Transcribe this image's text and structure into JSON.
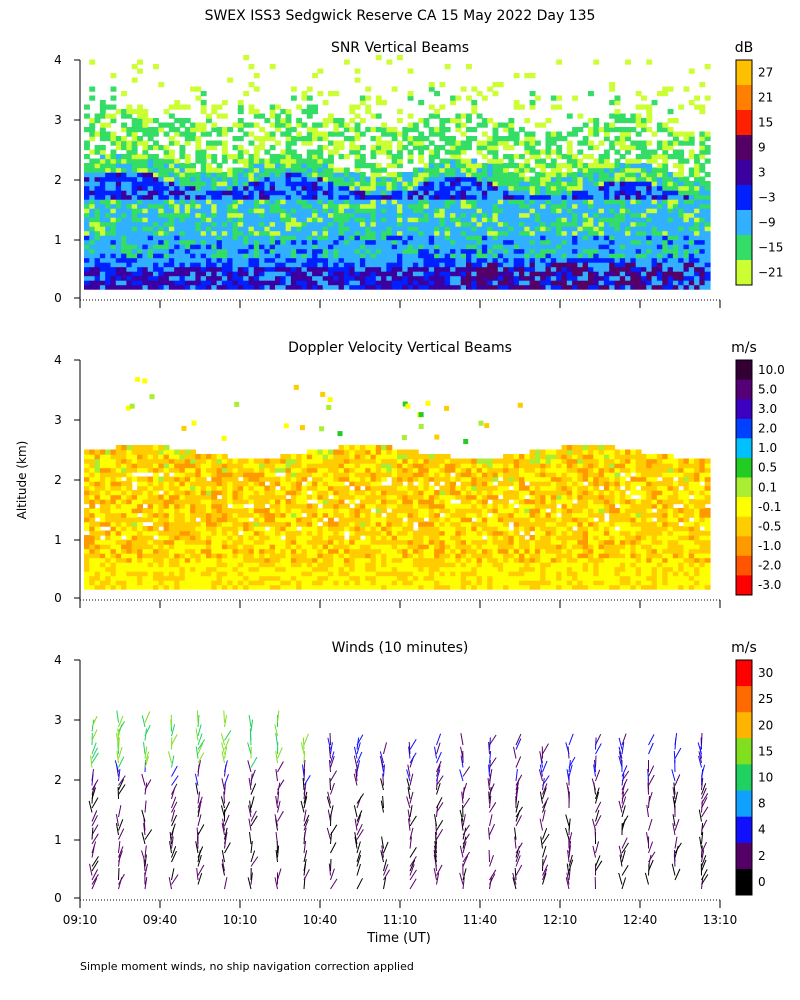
{
  "figure": {
    "title": "SWEX ISS3 Sedgwick Reserve CA  15 May 2022 Day 135",
    "ylabel": "Altitude (km)",
    "xlabel": "Time (UT)",
    "footnote": "Simple moment winds, no ship navigation correction applied"
  },
  "chart_data": [
    {
      "type": "heatmap",
      "title": "SNR Vertical Beams",
      "xlabel": "Time (UT)",
      "ylabel": "Altitude (km)",
      "x_ticks": [
        "09:10",
        "09:40",
        "10:10",
        "10:40",
        "11:10",
        "11:40",
        "12:10",
        "12:40",
        "13:10"
      ],
      "x_range_hours": [
        9.1667,
        13.1667
      ],
      "y_ticks": [
        0,
        1,
        2,
        3,
        4
      ],
      "ylim": [
        0,
        4
      ],
      "colorbar": {
        "unit": "dB",
        "tick_labels": [
          "27",
          "21",
          "15",
          "9",
          "3",
          "−3",
          "−9",
          "−15",
          "−21"
        ],
        "colors": [
          "#ffc000",
          "#ff8000",
          "#ff2000",
          "#550066",
          "#3c00a0",
          "#0020ff",
          "#30b0ff",
          "#33dd66",
          "#ccff33"
        ],
        "range": [
          -21,
          27
        ]
      },
      "cloud_top_km": 2.2,
      "notes": "High SNR (purple/dark blue) below 0.6 km and around 2 km; cyan/green layer 0.6-2.3 km; patchy green/white echoes 2.3-4 km"
    },
    {
      "type": "heatmap",
      "title": "Doppler Velocity Vertical Beams",
      "xlabel": "Time (UT)",
      "ylabel": "Altitude (km)",
      "x_ticks": [
        "09:10",
        "09:40",
        "10:10",
        "10:40",
        "11:10",
        "11:40",
        "12:10",
        "12:40",
        "13:10"
      ],
      "y_ticks": [
        0,
        1,
        2,
        3,
        4
      ],
      "ylim": [
        0,
        4
      ],
      "colorbar": {
        "unit": "m/s",
        "tick_labels": [
          "10.0",
          "5.0",
          "3.0",
          "2.0",
          "1.0",
          "0.5",
          "0.1",
          "-0.1",
          "-0.5",
          "-1.0",
          "-2.0",
          "-3.0"
        ],
        "colors": [
          "#330033",
          "#550077",
          "#3c00c0",
          "#0040ff",
          "#00c0ff",
          "#22cc22",
          "#aaee33",
          "#ffff00",
          "#ffcc00",
          "#ff9900",
          "#ff5500",
          "#ff0000"
        ],
        "range": [
          -3.0,
          10.0
        ]
      },
      "notes": "Mostly small downward/near-zero velocities (yellow/orange) between 0.2 and 2.4 km"
    },
    {
      "type": "wind-barbs",
      "title": "Winds (10 minutes)",
      "xlabel": "Time (UT)",
      "ylabel": "Altitude (km)",
      "x_ticks": [
        "09:10",
        "09:40",
        "10:10",
        "10:40",
        "11:10",
        "11:40",
        "12:10",
        "12:40",
        "13:10"
      ],
      "y_ticks": [
        0,
        1,
        2,
        3,
        4
      ],
      "ylim": [
        0,
        4
      ],
      "interval_minutes": 10,
      "colorbar": {
        "unit": "m/s",
        "tick_labels": [
          "30",
          "25",
          "20",
          "15",
          "10",
          "8",
          "4",
          "2",
          "0"
        ],
        "colors": [
          "#ff0000",
          "#ff6a00",
          "#ffb400",
          "#80e020",
          "#20d060",
          "#10a0ff",
          "#1010ff",
          "#550066",
          "#000000"
        ],
        "range": [
          0,
          34
        ]
      },
      "notes": "Weak winds (0-4 m/s, black/purple) below 2 km; 10-20 m/s (green/cyan) around 2-3 km early in the day"
    }
  ]
}
